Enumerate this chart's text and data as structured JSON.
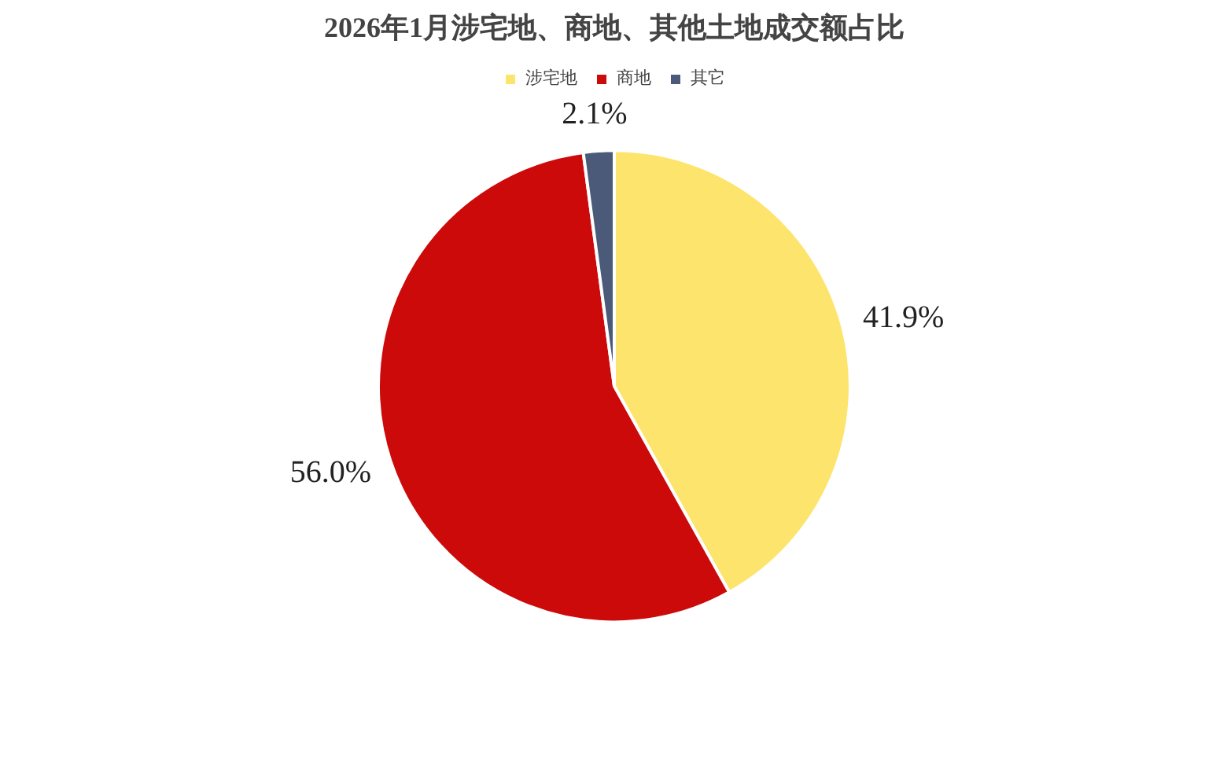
{
  "chart_data": {
    "type": "pie",
    "title": "2026年1月涉宅地、商地、其他土地成交额占比",
    "categories": [
      "涉宅地",
      "商地",
      "其它"
    ],
    "values": [
      41.9,
      56.0,
      2.1
    ],
    "colors": [
      "#fde46c",
      "#cc0a0a",
      "#4a5a78"
    ],
    "value_labels": [
      "41.9%",
      "56.0%",
      "2.1%"
    ],
    "legend": "top"
  }
}
